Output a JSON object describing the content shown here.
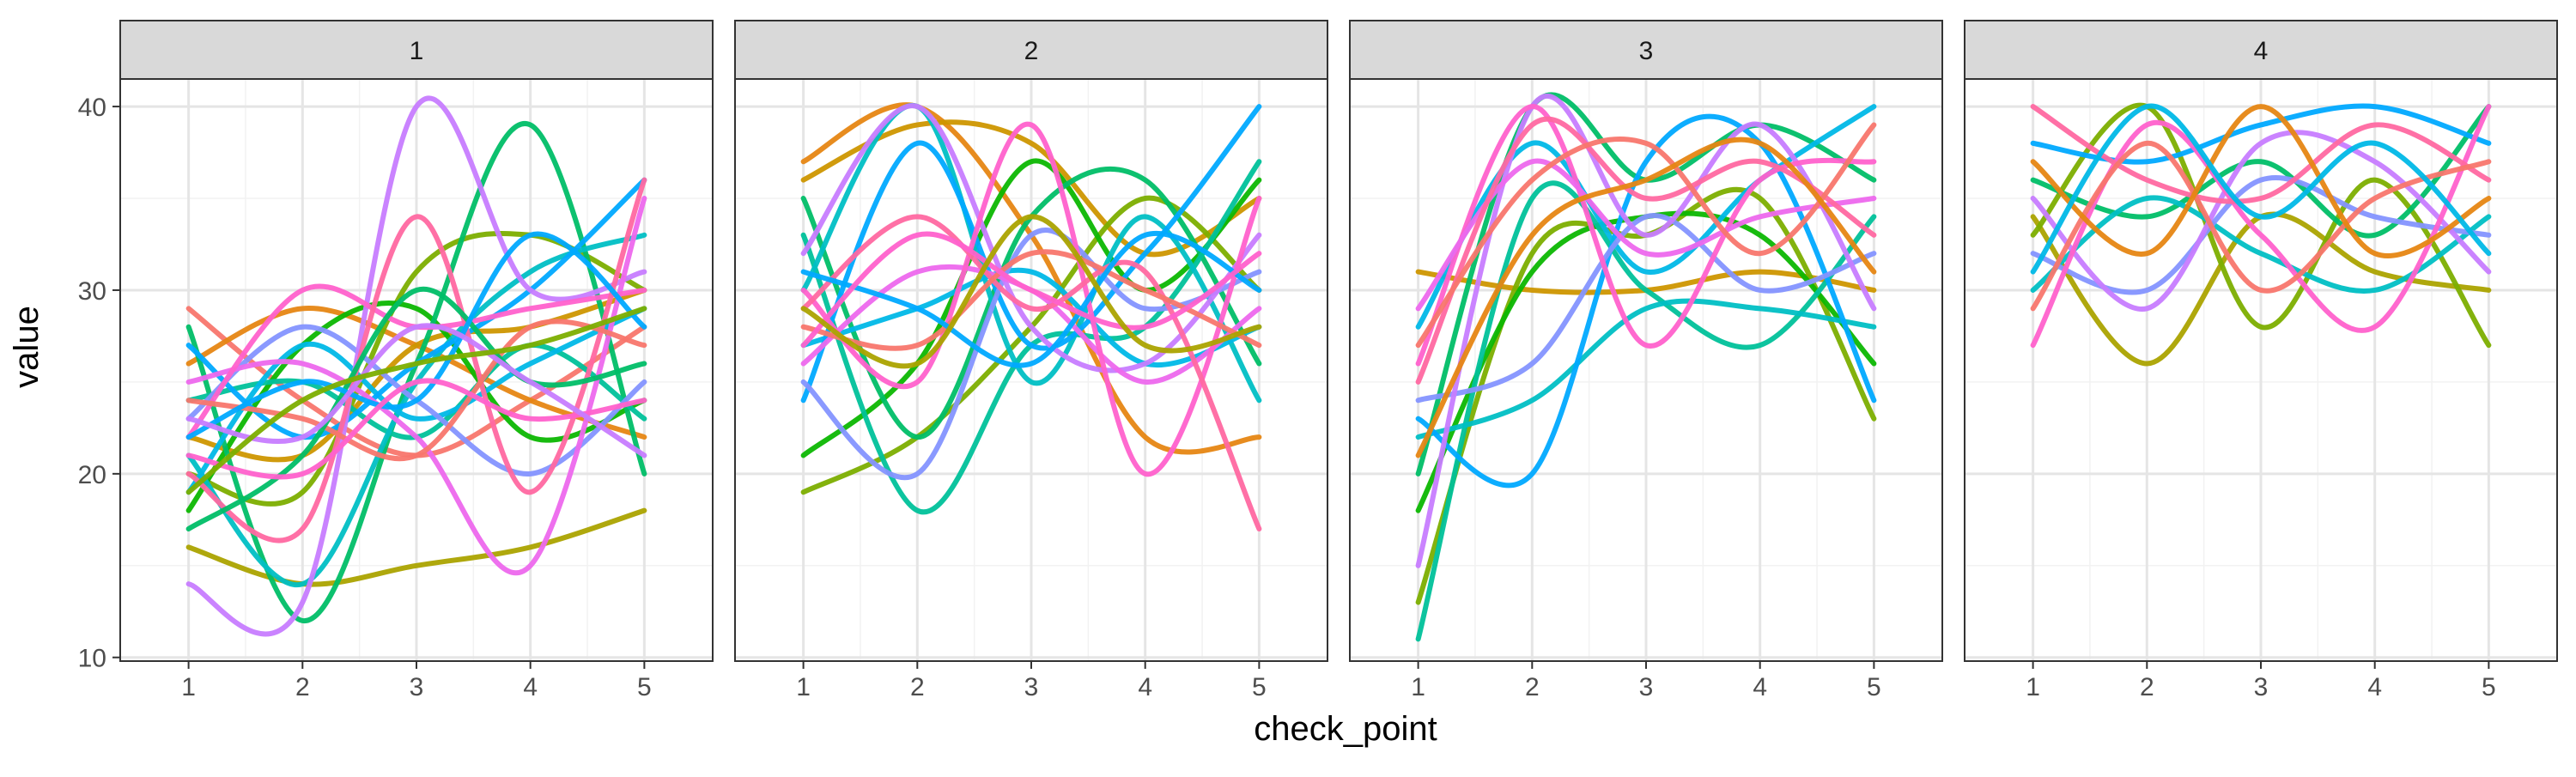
{
  "chart_data": {
    "type": "line",
    "title": "",
    "xlabel": "check_point",
    "ylabel": "value",
    "x": [
      1,
      2,
      3,
      4,
      5
    ],
    "x_ticks": [
      "1",
      "2",
      "3",
      "4",
      "5"
    ],
    "y_ticks": [
      "10",
      "20",
      "30",
      "40"
    ],
    "ylim": [
      9.8,
      41.5
    ],
    "xlim": [
      0.4,
      5.6
    ],
    "grid": true,
    "legend": "none",
    "facet_strip_color": "#d9d9d9",
    "panels": [
      {
        "label": "1",
        "series": [
          {
            "values": [
              29,
              24,
              21,
              24,
              28
            ],
            "color": "#f8766d"
          },
          {
            "values": [
              26,
              29,
              27,
              24,
              22
            ],
            "color": "#e68613"
          },
          {
            "values": [
              22,
              21,
              27,
              28,
              30
            ],
            "color": "#cd9600"
          },
          {
            "values": [
              16,
              14,
              15,
              16,
              18
            ],
            "color": "#aba300"
          },
          {
            "values": [
              20,
              19,
              31,
              33,
              30
            ],
            "color": "#7cae00"
          },
          {
            "values": [
              18,
              27,
              29,
              22,
              24
            ],
            "color": "#0cb702"
          },
          {
            "values": [
              28,
              12,
              26,
              39,
              20
            ],
            "color": "#00be67"
          },
          {
            "values": [
              24,
              25,
              22,
              27,
              23
            ],
            "color": "#00c19a"
          },
          {
            "values": [
              21,
              14,
              25,
              31,
              33
            ],
            "color": "#00bfc4"
          },
          {
            "values": [
              19,
              27,
              23,
              26,
              29
            ],
            "color": "#00b8e7"
          },
          {
            "values": [
              27,
              22,
              26,
              30,
              36
            ],
            "color": "#00a9ff"
          },
          {
            "values": [
              23,
              28,
              24,
              20,
              25
            ],
            "color": "#8494ff"
          },
          {
            "values": [
              14,
              13,
              40,
              30,
              31
            ],
            "color": "#c77cff"
          },
          {
            "values": [
              25,
              26,
              22,
              15,
              35
            ],
            "color": "#ed68ed"
          },
          {
            "values": [
              22,
              30,
              28,
              29,
              30
            ],
            "color": "#ff61cc"
          },
          {
            "values": [
              20,
              17,
              34,
              19,
              36
            ],
            "color": "#ff68a1"
          },
          {
            "values": [
              24,
              23,
              21,
              28,
              27
            ],
            "color": "#f8766d"
          },
          {
            "values": [
              17,
              21,
              30,
              25,
              26
            ],
            "color": "#00be67"
          },
          {
            "values": [
              22,
              25,
              24,
              33,
              28
            ],
            "color": "#00a9ff"
          },
          {
            "values": [
              21,
              20,
              25,
              23,
              24
            ],
            "color": "#ff61cc"
          },
          {
            "values": [
              23,
              22,
              28,
              25,
              21
            ],
            "color": "#c77cff"
          },
          {
            "values": [
              19,
              24,
              26,
              27,
              29
            ],
            "color": "#7cae00"
          }
        ]
      },
      {
        "label": "2",
        "series": [
          {
            "values": [
              37,
              40,
              33,
              22,
              22
            ],
            "color": "#e68613"
          },
          {
            "values": [
              36,
              39,
              38,
              32,
              35
            ],
            "color": "#cd9600"
          },
          {
            "values": [
              19,
              22,
              28,
              35,
              30
            ],
            "color": "#7cae00"
          },
          {
            "values": [
              21,
              26,
              37,
              30,
              36
            ],
            "color": "#0cb702"
          },
          {
            "values": [
              35,
              22,
              34,
              36,
              26
            ],
            "color": "#00be67"
          },
          {
            "values": [
              33,
              18,
              27,
              28,
              37
            ],
            "color": "#00c19a"
          },
          {
            "values": [
              30,
              40,
              25,
              34,
              24
            ],
            "color": "#00bfc4"
          },
          {
            "values": [
              27,
              29,
              31,
              26,
              28
            ],
            "color": "#00b8e7"
          },
          {
            "values": [
              24,
              38,
              27,
              32,
              40
            ],
            "color": "#00a9ff"
          },
          {
            "values": [
              25,
              20,
              33,
              29,
              31
            ],
            "color": "#8494ff"
          },
          {
            "values": [
              32,
              40,
              28,
              26,
              33
            ],
            "color": "#c77cff"
          },
          {
            "values": [
              26,
              31,
              30,
              25,
              29
            ],
            "color": "#ed68ed"
          },
          {
            "values": [
              30,
              25,
              39,
              20,
              35
            ],
            "color": "#ff61cc"
          },
          {
            "values": [
              29,
              34,
              29,
              31,
              17
            ],
            "color": "#ff68a1"
          },
          {
            "values": [
              28,
              27,
              32,
              30,
              27
            ],
            "color": "#f8766d"
          },
          {
            "values": [
              31,
              29,
              26,
              33,
              30
            ],
            "color": "#00a9ff"
          },
          {
            "values": [
              27,
              33,
              30,
              28,
              32
            ],
            "color": "#ff61cc"
          },
          {
            "values": [
              29,
              26,
              34,
              27,
              28
            ],
            "color": "#aba300"
          }
        ]
      },
      {
        "label": "3",
        "series": [
          {
            "values": [
              31,
              30,
              30,
              31,
              30
            ],
            "color": "#cd9600"
          },
          {
            "values": [
              13,
              32,
              33,
              35,
              23
            ],
            "color": "#7cae00"
          },
          {
            "values": [
              18,
              31,
              34,
              33,
              26
            ],
            "color": "#0cb702"
          },
          {
            "values": [
              20,
              40,
              36,
              39,
              36
            ],
            "color": "#00be67"
          },
          {
            "values": [
              11,
              35,
              30,
              27,
              34
            ],
            "color": "#00c19a"
          },
          {
            "values": [
              22,
              24,
              29,
              29,
              28
            ],
            "color": "#00bfc4"
          },
          {
            "values": [
              23,
              20,
              37,
              38,
              24
            ],
            "color": "#00a9ff"
          },
          {
            "values": [
              28,
              38,
              31,
              36,
              40
            ],
            "color": "#00b8e7"
          },
          {
            "values": [
              24,
              26,
              34,
              30,
              32
            ],
            "color": "#8494ff"
          },
          {
            "values": [
              15,
              40,
              33,
              39,
              29
            ],
            "color": "#c77cff"
          },
          {
            "values": [
              26,
              40,
              27,
              36,
              37
            ],
            "color": "#ff61cc"
          },
          {
            "values": [
              29,
              37,
              32,
              34,
              35
            ],
            "color": "#ed68ed"
          },
          {
            "values": [
              25,
              39,
              35,
              37,
              33
            ],
            "color": "#ff68a1"
          },
          {
            "values": [
              27,
              36,
              38,
              32,
              39
            ],
            "color": "#f8766d"
          },
          {
            "values": [
              21,
              33,
              36,
              38,
              31
            ],
            "color": "#e68613"
          }
        ]
      },
      {
        "label": "4",
        "series": [
          {
            "values": [
              34,
              26,
              34,
              31,
              30
            ],
            "color": "#aba300"
          },
          {
            "values": [
              33,
              40,
              28,
              36,
              27
            ],
            "color": "#7cae00"
          },
          {
            "values": [
              36,
              34,
              37,
              33,
              40
            ],
            "color": "#00be67"
          },
          {
            "values": [
              30,
              35,
              32,
              30,
              34
            ],
            "color": "#00bfc4"
          },
          {
            "values": [
              38,
              37,
              39,
              40,
              38
            ],
            "color": "#00a9ff"
          },
          {
            "values": [
              32,
              30,
              36,
              34,
              33
            ],
            "color": "#8494ff"
          },
          {
            "values": [
              35,
              29,
              38,
              37,
              31
            ],
            "color": "#c77cff"
          },
          {
            "values": [
              27,
              39,
              33,
              28,
              40
            ],
            "color": "#ff61cc"
          },
          {
            "values": [
              40,
              36,
              35,
              39,
              36
            ],
            "color": "#ff68a1"
          },
          {
            "values": [
              29,
              38,
              30,
              35,
              37
            ],
            "color": "#f8766d"
          },
          {
            "values": [
              37,
              32,
              40,
              32,
              35
            ],
            "color": "#e68613"
          },
          {
            "values": [
              31,
              40,
              34,
              38,
              32
            ],
            "color": "#00b8e7"
          }
        ]
      }
    ]
  }
}
